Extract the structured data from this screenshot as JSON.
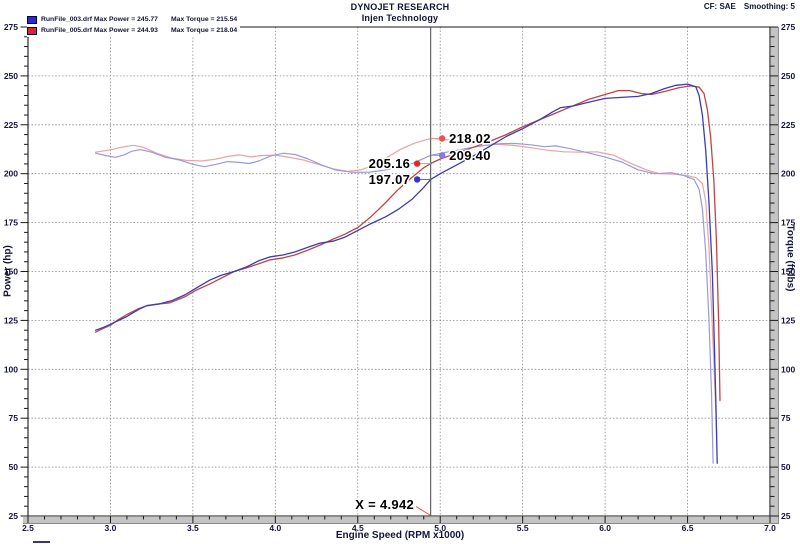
{
  "header": {
    "title": "DYNOJET RESEARCH",
    "subtitle": "Injen Technology",
    "cf": "CF: SAE",
    "smoothing": "Smoothing: 5"
  },
  "legend": [
    {
      "color": "#2a2ace",
      "main": "RunFile_003.drf Max Power = 245.77",
      "torque": "Max Torque = 215.54"
    },
    {
      "color": "#d42a2a",
      "main": "RunFile_005.drf Max Power = 244.93",
      "torque": "Max Torque = 218.04"
    }
  ],
  "chart_data": {
    "type": "line",
    "xlabel": "Engine Speed (RPM x1000)",
    "ylabel_left": "Power (hp)",
    "ylabel_right": "Torque (ft-lbs)",
    "xlim": [
      2.5,
      7.0
    ],
    "ylim": [
      25,
      275
    ],
    "x_ticks": [
      "2.5",
      "3.0",
      "3.5",
      "4.0",
      "4.5",
      "5.0",
      "5.5",
      "6.0",
      "6.5",
      "7.0"
    ],
    "y_ticks": [
      "275",
      "250",
      "225",
      "200",
      "175",
      "150",
      "125",
      "100",
      "75",
      "50",
      "25"
    ],
    "x_minor_step": 0.1,
    "y_minor_step": 5,
    "grid": true,
    "cursor": {
      "x": 4.942,
      "label": "X = 4.942",
      "line_color": "#555555",
      "leader_color": "#e05555"
    },
    "callouts": [
      {
        "text": "218.02",
        "value": 218.02,
        "side": "right",
        "dot_color": "#ef5050",
        "leader_color": "#e89a9a"
      },
      {
        "text": "209.40",
        "value": 209.4,
        "side": "right",
        "dot_color": "#7d7de8",
        "leader_color": "#8a8adc"
      },
      {
        "text": "205.16",
        "value": 205.16,
        "side": "left",
        "dot_color": "#e02828",
        "leader_color": "#c8a0a0"
      },
      {
        "text": "197.07",
        "value": 197.07,
        "side": "left",
        "dot_color": "#3434cc",
        "leader_color": "#666666"
      }
    ],
    "series": [
      {
        "name": "runfile005-torque",
        "legend_ref": "RunFile_005.drf",
        "axis": "torque",
        "color": "#e8a4a4",
        "width": 1.2,
        "points": [
          [
            2.91,
            211
          ],
          [
            3.0,
            212.2
          ],
          [
            3.07,
            213.6
          ],
          [
            3.14,
            214.5
          ],
          [
            3.2,
            213.5
          ],
          [
            3.28,
            210.5
          ],
          [
            3.37,
            208
          ],
          [
            3.46,
            206.8
          ],
          [
            3.55,
            206.5
          ],
          [
            3.63,
            207.3
          ],
          [
            3.71,
            208.8
          ],
          [
            3.78,
            209.6
          ],
          [
            3.85,
            208.6
          ],
          [
            3.92,
            209.3
          ],
          [
            4.0,
            209.5
          ],
          [
            4.08,
            208.5
          ],
          [
            4.17,
            207
          ],
          [
            4.26,
            204.8
          ],
          [
            4.35,
            202.5
          ],
          [
            4.44,
            201.2
          ],
          [
            4.52,
            202
          ],
          [
            4.6,
            204.5
          ],
          [
            4.68,
            208.5
          ],
          [
            4.76,
            212.5
          ],
          [
            4.85,
            215.8
          ],
          [
            4.93,
            217.8
          ],
          [
            4.96,
            218
          ],
          [
            5.05,
            217.3
          ],
          [
            5.15,
            216.3
          ],
          [
            5.25,
            215.5
          ],
          [
            5.35,
            215
          ],
          [
            5.45,
            214.4
          ],
          [
            5.55,
            213.3
          ],
          [
            5.65,
            212
          ],
          [
            5.75,
            211.2
          ],
          [
            5.85,
            211
          ],
          [
            5.95,
            211.2
          ],
          [
            6.05,
            209.5
          ],
          [
            6.15,
            205.5
          ],
          [
            6.25,
            202
          ],
          [
            6.33,
            200
          ],
          [
            6.42,
            199.8
          ],
          [
            6.5,
            199
          ],
          [
            6.55,
            198
          ],
          [
            6.59,
            195
          ],
          [
            6.61,
            186
          ],
          [
            6.63,
            162
          ],
          [
            6.65,
            122
          ],
          [
            6.665,
            92
          ],
          [
            6.677,
            66
          ]
        ]
      },
      {
        "name": "runfile003-torque",
        "legend_ref": "RunFile_003.drf",
        "axis": "torque",
        "color": "#9a9adc",
        "width": 1.2,
        "points": [
          [
            2.91,
            210.5
          ],
          [
            2.97,
            209.3
          ],
          [
            3.03,
            208.4
          ],
          [
            3.08,
            209.5
          ],
          [
            3.13,
            211.5
          ],
          [
            3.18,
            212.3
          ],
          [
            3.25,
            211
          ],
          [
            3.33,
            208.5
          ],
          [
            3.42,
            207
          ],
          [
            3.5,
            204.8
          ],
          [
            3.57,
            203.6
          ],
          [
            3.64,
            204.8
          ],
          [
            3.71,
            206.2
          ],
          [
            3.78,
            205.8
          ],
          [
            3.84,
            205.2
          ],
          [
            3.9,
            206.5
          ],
          [
            3.97,
            209
          ],
          [
            4.05,
            210.5
          ],
          [
            4.12,
            209.8
          ],
          [
            4.2,
            207.5
          ],
          [
            4.28,
            204.5
          ],
          [
            4.37,
            201.8
          ],
          [
            4.47,
            200.7
          ],
          [
            4.57,
            200.8
          ],
          [
            4.66,
            201.8
          ],
          [
            4.75,
            203.3
          ],
          [
            4.84,
            205.5
          ],
          [
            4.942,
            209.4
          ],
          [
            5.05,
            211.2
          ],
          [
            5.15,
            212.8
          ],
          [
            5.25,
            214.2
          ],
          [
            5.35,
            215.3
          ],
          [
            5.45,
            215.5
          ],
          [
            5.55,
            214.8
          ],
          [
            5.63,
            213.8
          ],
          [
            5.7,
            214.2
          ],
          [
            5.78,
            213
          ],
          [
            5.88,
            211
          ],
          [
            6.0,
            208.5
          ],
          [
            6.1,
            206
          ],
          [
            6.2,
            202
          ],
          [
            6.3,
            200
          ],
          [
            6.4,
            200.5
          ],
          [
            6.48,
            199
          ],
          [
            6.54,
            197
          ],
          [
            6.57,
            192
          ],
          [
            6.59,
            182
          ],
          [
            6.61,
            160
          ],
          [
            6.63,
            125
          ],
          [
            6.645,
            88
          ],
          [
            6.655,
            52
          ]
        ]
      },
      {
        "name": "runfile005-power",
        "legend_ref": "RunFile_005.drf",
        "axis": "power",
        "color": "#bf4545",
        "width": 1.3,
        "points": [
          [
            2.91,
            119
          ],
          [
            2.96,
            121
          ],
          [
            3.0,
            122.5
          ],
          [
            3.05,
            125.5
          ],
          [
            3.1,
            128
          ],
          [
            3.17,
            131
          ],
          [
            3.22,
            132.5
          ],
          [
            3.3,
            133.5
          ],
          [
            3.36,
            134
          ],
          [
            3.45,
            137
          ],
          [
            3.52,
            140.5
          ],
          [
            3.6,
            143.5
          ],
          [
            3.67,
            146.5
          ],
          [
            3.75,
            150
          ],
          [
            3.83,
            152
          ],
          [
            3.9,
            154
          ],
          [
            3.97,
            156
          ],
          [
            4.05,
            157
          ],
          [
            4.12,
            158.5
          ],
          [
            4.2,
            161
          ],
          [
            4.27,
            163.5
          ],
          [
            4.35,
            166.5
          ],
          [
            4.42,
            169
          ],
          [
            4.5,
            172.5
          ],
          [
            4.58,
            178
          ],
          [
            4.66,
            184.5
          ],
          [
            4.74,
            191.5
          ],
          [
            4.82,
            197.5
          ],
          [
            4.9,
            203
          ],
          [
            4.942,
            205.2
          ],
          [
            5.0,
            207.5
          ],
          [
            5.1,
            210.5
          ],
          [
            5.2,
            213.5
          ],
          [
            5.3,
            216.5
          ],
          [
            5.4,
            220
          ],
          [
            5.5,
            224
          ],
          [
            5.6,
            227.5
          ],
          [
            5.7,
            231
          ],
          [
            5.8,
            234.5
          ],
          [
            5.9,
            238
          ],
          [
            6.0,
            240.5
          ],
          [
            6.08,
            242.5
          ],
          [
            6.15,
            242.5
          ],
          [
            6.22,
            241
          ],
          [
            6.28,
            240.5
          ],
          [
            6.36,
            242
          ],
          [
            6.45,
            244
          ],
          [
            6.52,
            244.9
          ],
          [
            6.57,
            244.2
          ],
          [
            6.6,
            241
          ],
          [
            6.62,
            233
          ],
          [
            6.64,
            219
          ],
          [
            6.66,
            196
          ],
          [
            6.675,
            166
          ],
          [
            6.688,
            125
          ],
          [
            6.697,
            84
          ]
        ]
      },
      {
        "name": "runfile003-power",
        "legend_ref": "RunFile_003.drf",
        "axis": "power",
        "color": "#3c3cb6",
        "width": 1.3,
        "points": [
          [
            2.91,
            120
          ],
          [
            2.96,
            121.5
          ],
          [
            3.0,
            123
          ],
          [
            3.05,
            125
          ],
          [
            3.1,
            127
          ],
          [
            3.17,
            130.5
          ],
          [
            3.22,
            132.5
          ],
          [
            3.3,
            133.5
          ],
          [
            3.37,
            135
          ],
          [
            3.45,
            138
          ],
          [
            3.52,
            141.5
          ],
          [
            3.6,
            145.5
          ],
          [
            3.67,
            148
          ],
          [
            3.75,
            150
          ],
          [
            3.83,
            152.5
          ],
          [
            3.9,
            155.5
          ],
          [
            3.97,
            157.5
          ],
          [
            4.05,
            158.5
          ],
          [
            4.12,
            160
          ],
          [
            4.2,
            162.5
          ],
          [
            4.27,
            164.5
          ],
          [
            4.35,
            165.5
          ],
          [
            4.42,
            167.5
          ],
          [
            4.5,
            171
          ],
          [
            4.58,
            174.5
          ],
          [
            4.67,
            178
          ],
          [
            4.75,
            182
          ],
          [
            4.83,
            187
          ],
          [
            4.9,
            193
          ],
          [
            4.942,
            197.1
          ],
          [
            5.0,
            200
          ],
          [
            5.1,
            204.5
          ],
          [
            5.2,
            209
          ],
          [
            5.3,
            214
          ],
          [
            5.4,
            219
          ],
          [
            5.5,
            223
          ],
          [
            5.6,
            227.5
          ],
          [
            5.68,
            231.5
          ],
          [
            5.73,
            233.8
          ],
          [
            5.8,
            234.5
          ],
          [
            5.9,
            236.5
          ],
          [
            6.0,
            238.5
          ],
          [
            6.1,
            239
          ],
          [
            6.2,
            239.5
          ],
          [
            6.28,
            241
          ],
          [
            6.36,
            243.5
          ],
          [
            6.43,
            245.2
          ],
          [
            6.5,
            245.8
          ],
          [
            6.55,
            244.5
          ],
          [
            6.57,
            240
          ],
          [
            6.59,
            230
          ],
          [
            6.61,
            212
          ],
          [
            6.63,
            185
          ],
          [
            6.65,
            150
          ],
          [
            6.663,
            112
          ],
          [
            6.673,
            78
          ],
          [
            6.68,
            52
          ]
        ]
      }
    ],
    "colors": {
      "grid": "#8f8f8f",
      "frame": "#1a1a1a",
      "axis_bar": "#c4c4c4",
      "tick_label": "#14143c"
    }
  }
}
